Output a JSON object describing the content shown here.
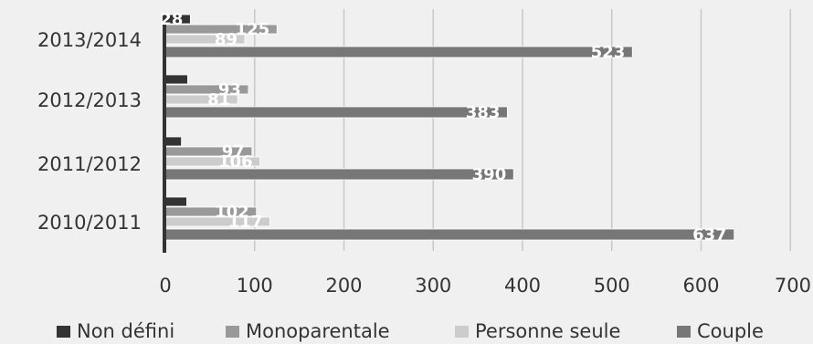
{
  "chart_data": {
    "type": "bar",
    "orientation": "horizontal",
    "categories": [
      "2010/2011",
      "2011/2012",
      "2012/2013",
      "2013/2014"
    ],
    "series": [
      {
        "name": "Non défini",
        "values": [
          24,
          18,
          25,
          28
        ],
        "color": "#333333"
      },
      {
        "name": "Monoparentale",
        "values": [
          102,
          97,
          93,
          125
        ],
        "color": "#999999"
      },
      {
        "name": "Personne seule",
        "values": [
          117,
          106,
          81,
          89
        ],
        "color": "#cccccc"
      },
      {
        "name": "Couple",
        "values": [
          637,
          390,
          383,
          523
        ],
        "color": "#777777"
      }
    ],
    "value_labels": [
      [
        "",
        "",
        "",
        "28"
      ],
      [
        "102",
        "97",
        "93",
        "125"
      ],
      [
        "117",
        "106",
        "81",
        "89"
      ],
      [
        "637",
        "390",
        "383",
        "523"
      ]
    ],
    "xticks": [
      "0",
      "100",
      "200",
      "300",
      "400",
      "500",
      "600",
      "700"
    ],
    "xlim": [
      0,
      700
    ],
    "title": "",
    "xlabel": "",
    "ylabel": "",
    "grid": true,
    "legend_position": "bottom"
  }
}
